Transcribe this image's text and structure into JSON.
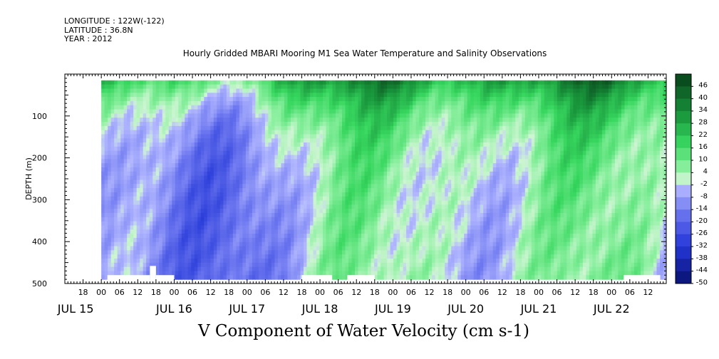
{
  "header": {
    "longitude": "LONGITUDE : 122W(-122)",
    "latitude": "LATITUDE : 36.8N",
    "year": "YEAR : 2012"
  },
  "chart_data": {
    "type": "heatmap",
    "title": "Hourly Gridded MBARI Mooring M1 Sea Water Temperature and Salinity Observations",
    "xlabel": "V Component of Water Velocity (cm s-1)",
    "ylabel": "DEPTH (m)",
    "y_range": [
      0,
      500
    ],
    "y_reversed": true,
    "y_ticks": [
      100,
      200,
      300,
      400,
      500
    ],
    "data_depth_range": [
      15,
      490
    ],
    "x_range_hours": [
      "2012-07-15 12:00",
      "2012-07-22 18:00"
    ],
    "x_hour_ticks": [
      "18",
      "00",
      "06",
      "12",
      "18",
      "00",
      "06",
      "12",
      "18",
      "00",
      "06",
      "12",
      "18",
      "00",
      "06",
      "12",
      "18",
      "00",
      "06",
      "12",
      "18",
      "00",
      "06",
      "12",
      "18",
      "00",
      "06",
      "12",
      "18",
      "00",
      "06",
      "12"
    ],
    "x_day_ticks": [
      "JUL 15",
      "JUL 16",
      "JUL 17",
      "JUL 18",
      "JUL 19",
      "JUL 20",
      "JUL 21",
      "JUL 22"
    ],
    "colorbar": {
      "levels": [
        46,
        40,
        34,
        28,
        22,
        16,
        10,
        4,
        -2,
        -8,
        -14,
        -20,
        -26,
        -32,
        -38,
        -44,
        -50
      ],
      "min": -50,
      "max": 50,
      "colors": {
        "strong_positive": "#0a4d1e",
        "positive": "#2bd158",
        "weak_positive": "#9af2a4",
        "weak_negative": "#b4b8ff",
        "negative": "#6f78f0",
        "strong_negative": "#0c1670"
      }
    }
  }
}
